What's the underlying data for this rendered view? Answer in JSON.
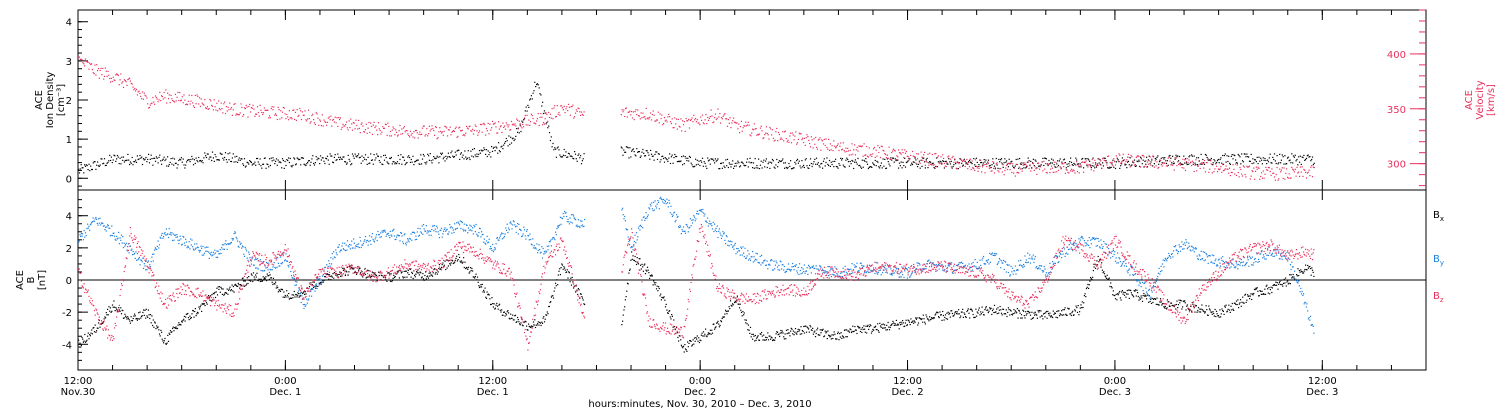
{
  "colors": {
    "density": "#000000",
    "velocity": "#e8305c",
    "bx": "#000000",
    "by": "#1a7fe0",
    "bz": "#e8305c",
    "axes": "#000000"
  },
  "xaxis": {
    "title": "hours:minutes, Nov. 30, 2010 – Dec. 3, 2010",
    "range_hours": [
      0,
      78
    ],
    "ticks": [
      {
        "hour": 0,
        "time": "12:00",
        "date": "Nov.30"
      },
      {
        "hour": 12,
        "time": "0:00",
        "date": "Dec. 1"
      },
      {
        "hour": 24,
        "time": "12:00",
        "date": "Dec. 1"
      },
      {
        "hour": 36,
        "time": "0:00",
        "date": "Dec. 2"
      },
      {
        "hour": 48,
        "time": "12:00",
        "date": "Dec. 2"
      },
      {
        "hour": 60,
        "time": "0:00",
        "date": "Dec. 3"
      },
      {
        "hour": 72,
        "time": "12:00",
        "date": "Dec. 3"
      }
    ]
  },
  "panel_top": {
    "left_axis": {
      "label_line1": "ACE",
      "label_line2": "Ion Density",
      "label_line3": "[cm⁻³]",
      "ylim": [
        -0.3,
        4.3
      ],
      "ticks": [
        "0",
        "1",
        "2",
        "3",
        "4"
      ]
    },
    "right_axis": {
      "label_line1": "ACE",
      "label_line2": "Velocity",
      "label_line3": "[km/s]",
      "ylim": [
        276,
        440
      ],
      "ticks": [
        "300",
        "350",
        "400"
      ]
    }
  },
  "panel_bottom": {
    "left_axis": {
      "label_line1": "ACE",
      "label_line2": "B",
      "label_line3": "[nT]",
      "ylim": [
        -5.6,
        5.6
      ],
      "ticks": [
        "4",
        "2",
        "0",
        "-2",
        "-4"
      ]
    },
    "legend": [
      {
        "base": "B",
        "sub": "x"
      },
      {
        "base": "B",
        "sub": "y"
      },
      {
        "base": "B",
        "sub": "z"
      }
    ]
  },
  "chart_data": [
    {
      "type": "scatter",
      "name": "ion-density-velocity-panel",
      "x_units": "hours since 12:00 Nov. 30, 2010",
      "series": [
        {
          "name": "Ion Density",
          "axis": "left",
          "data_gap_hours": [
            29.3,
            31.4
          ],
          "x": [
            0.0,
            2.0,
            4.0,
            6.0,
            8.0,
            10.0,
            12.0,
            14.0,
            16.0,
            18.0,
            20.0,
            22.0,
            24.0,
            25.5,
            26.5,
            27.5,
            28.5,
            29.3,
            31.4,
            33.0,
            36.0,
            40.0,
            44.0,
            48.0,
            52.0,
            56.0,
            60.0,
            64.0,
            68.0,
            70.0,
            71.5
          ],
          "y": [
            0.2,
            0.5,
            0.5,
            0.4,
            0.6,
            0.4,
            0.4,
            0.5,
            0.5,
            0.5,
            0.5,
            0.6,
            0.7,
            1.2,
            2.5,
            0.7,
            0.6,
            0.5,
            0.7,
            0.6,
            0.4,
            0.4,
            0.4,
            0.4,
            0.4,
            0.4,
            0.4,
            0.5,
            0.5,
            0.5,
            0.5
          ]
        },
        {
          "name": "Velocity",
          "axis": "right",
          "data_gap_hours": [
            29.3,
            31.4
          ],
          "x": [
            0.0,
            1.0,
            2.0,
            3.0,
            4.0,
            5.0,
            7.0,
            9.0,
            11.0,
            13.0,
            15.0,
            17.0,
            19.0,
            21.0,
            23.0,
            25.0,
            27.0,
            28.0,
            29.3,
            31.4,
            33.0,
            35.0,
            36.0,
            37.0,
            38.0,
            40.0,
            42.0,
            44.0,
            46.0,
            48.0,
            50.0,
            52.0,
            54.0,
            56.0,
            58.0,
            60.0,
            62.0,
            64.0,
            66.0,
            68.0,
            70.0,
            71.5
          ],
          "y": [
            395,
            385,
            380,
            372,
            357,
            362,
            357,
            350,
            347,
            345,
            337,
            333,
            330,
            329,
            331,
            336,
            342,
            352,
            344,
            347,
            346,
            335,
            341,
            345,
            335,
            328,
            322,
            315,
            312,
            307,
            303,
            298,
            295,
            297,
            297,
            304,
            302,
            300,
            297,
            292,
            291,
            293
          ]
        }
      ]
    },
    {
      "type": "scatter",
      "name": "magnetic-field-panel",
      "x_units": "hours since 12:00 Nov. 30, 2010",
      "series": [
        {
          "name": "Bx",
          "data_gap_hours": [
            29.3,
            31.4
          ],
          "x": [
            0,
            1,
            2,
            3,
            4,
            5,
            6,
            7,
            8,
            9,
            10,
            11,
            12,
            13,
            14,
            15,
            16,
            17,
            18,
            19,
            20,
            21,
            22,
            23,
            24,
            25,
            26,
            27,
            28,
            29.3,
            31.4,
            32,
            33,
            34,
            35,
            36,
            37,
            38,
            39,
            40,
            41,
            42,
            43,
            44,
            45,
            46,
            47,
            48,
            49,
            50,
            51,
            52,
            53,
            54,
            55,
            56,
            57,
            58,
            59,
            60,
            61,
            62,
            63,
            64,
            65,
            66,
            67,
            68,
            69,
            70,
            71,
            71.5
          ],
          "y": [
            -4.0,
            -3.0,
            -1.5,
            -2.5,
            -2.0,
            -3.8,
            -2.5,
            -1.8,
            -0.7,
            -0.5,
            0.2,
            0.2,
            -0.9,
            -0.7,
            0.0,
            0.5,
            0.7,
            0.3,
            0.2,
            0.5,
            0.3,
            0.8,
            1.5,
            0.2,
            -1.5,
            -2.2,
            -2.8,
            -2.5,
            1.0,
            -1.5,
            -3.0,
            1.6,
            0.5,
            -1.5,
            -4.3,
            -3.5,
            -2.8,
            -1.0,
            -3.5,
            -3.5,
            -3.3,
            -3.0,
            -3.3,
            -3.5,
            -3.0,
            -3.0,
            -2.8,
            -2.6,
            -2.4,
            -2.2,
            -2.1,
            -2.0,
            -1.8,
            -2.0,
            -2.1,
            -2.2,
            -2.0,
            -1.8,
            1.4,
            -1.0,
            -0.8,
            -1.2,
            -1.5,
            -1.5,
            -1.8,
            -2.0,
            -1.5,
            -0.8,
            -0.5,
            0.0,
            0.8,
            0.5
          ]
        },
        {
          "name": "By",
          "data_gap_hours": [
            29.3,
            31.4
          ],
          "x": [
            0,
            1,
            2,
            3,
            4,
            5,
            6,
            7,
            8,
            9,
            10,
            11,
            12,
            13,
            14,
            15,
            16,
            17,
            18,
            19,
            20,
            21,
            22,
            23,
            24,
            25,
            26,
            27,
            28,
            29.3,
            31.4,
            32,
            33,
            34,
            35,
            36,
            37,
            38,
            39,
            40,
            41,
            42,
            43,
            44,
            45,
            46,
            47,
            48,
            49,
            50,
            51,
            52,
            53,
            54,
            55,
            56,
            57,
            58,
            59,
            60,
            61,
            62,
            63,
            64,
            65,
            66,
            67,
            68,
            69,
            70,
            71,
            71.5
          ],
          "y": [
            2.5,
            3.8,
            3.0,
            2.0,
            0.8,
            3.0,
            2.5,
            2.0,
            1.5,
            2.8,
            1.2,
            0.8,
            1.5,
            -1.5,
            0.0,
            2.0,
            2.3,
            2.6,
            3.0,
            2.5,
            3.2,
            3.0,
            3.4,
            3.2,
            2.0,
            3.5,
            2.8,
            1.5,
            4.0,
            3.5,
            4.5,
            2.0,
            4.5,
            5.0,
            3.0,
            4.3,
            3.0,
            2.0,
            1.5,
            1.0,
            0.8,
            0.7,
            0.7,
            0.5,
            0.8,
            0.8,
            0.6,
            0.5,
            1.0,
            0.8,
            0.8,
            1.0,
            1.5,
            0.5,
            1.5,
            0.5,
            1.8,
            2.4,
            2.4,
            1.5,
            0.5,
            -0.8,
            1.6,
            2.3,
            1.5,
            1.2,
            1.0,
            1.3,
            1.8,
            1.5,
            -1.5,
            -3.3
          ]
        },
        {
          "name": "Bz",
          "data_gap_hours": [
            29.3,
            31.4
          ],
          "x": [
            0,
            1,
            2,
            3,
            4,
            5,
            6,
            7,
            8,
            9,
            10,
            11,
            12,
            13,
            14,
            15,
            16,
            17,
            18,
            19,
            20,
            21,
            22,
            23,
            24,
            25,
            26,
            27,
            28,
            29.3,
            31.4,
            32,
            33,
            34,
            35,
            36,
            37,
            38,
            39,
            40,
            41,
            42,
            43,
            44,
            45,
            46,
            47,
            48,
            49,
            50,
            51,
            52,
            53,
            54,
            55,
            56,
            57,
            58,
            59,
            60,
            61,
            62,
            63,
            64,
            65,
            66,
            67,
            68,
            69,
            70,
            71,
            71.5
          ],
          "y": [
            0.5,
            -2.0,
            -3.8,
            3.0,
            1.0,
            -1.5,
            -0.5,
            -0.8,
            -1.5,
            -2.0,
            1.5,
            1.2,
            2.0,
            -1.0,
            0.5,
            0.5,
            0.8,
            0.2,
            0.5,
            1.0,
            0.8,
            1.0,
            2.2,
            1.8,
            1.0,
            0.5,
            -4.0,
            1.0,
            2.5,
            -2.5,
            0.5,
            3.0,
            -2.5,
            -3.0,
            -3.2,
            3.5,
            -0.5,
            -1.0,
            -1.2,
            -0.8,
            -0.5,
            -0.8,
            0.5,
            0.5,
            0.3,
            0.8,
            0.8,
            0.7,
            0.8,
            0.9,
            0.6,
            0.5,
            0.0,
            -1.0,
            -1.5,
            0.0,
            2.5,
            2.0,
            1.0,
            2.5,
            1.0,
            0.0,
            -1.5,
            -2.5,
            -0.5,
            0.5,
            1.5,
            2.0,
            2.2,
            1.5,
            1.8,
            1.6
          ]
        }
      ]
    }
  ]
}
